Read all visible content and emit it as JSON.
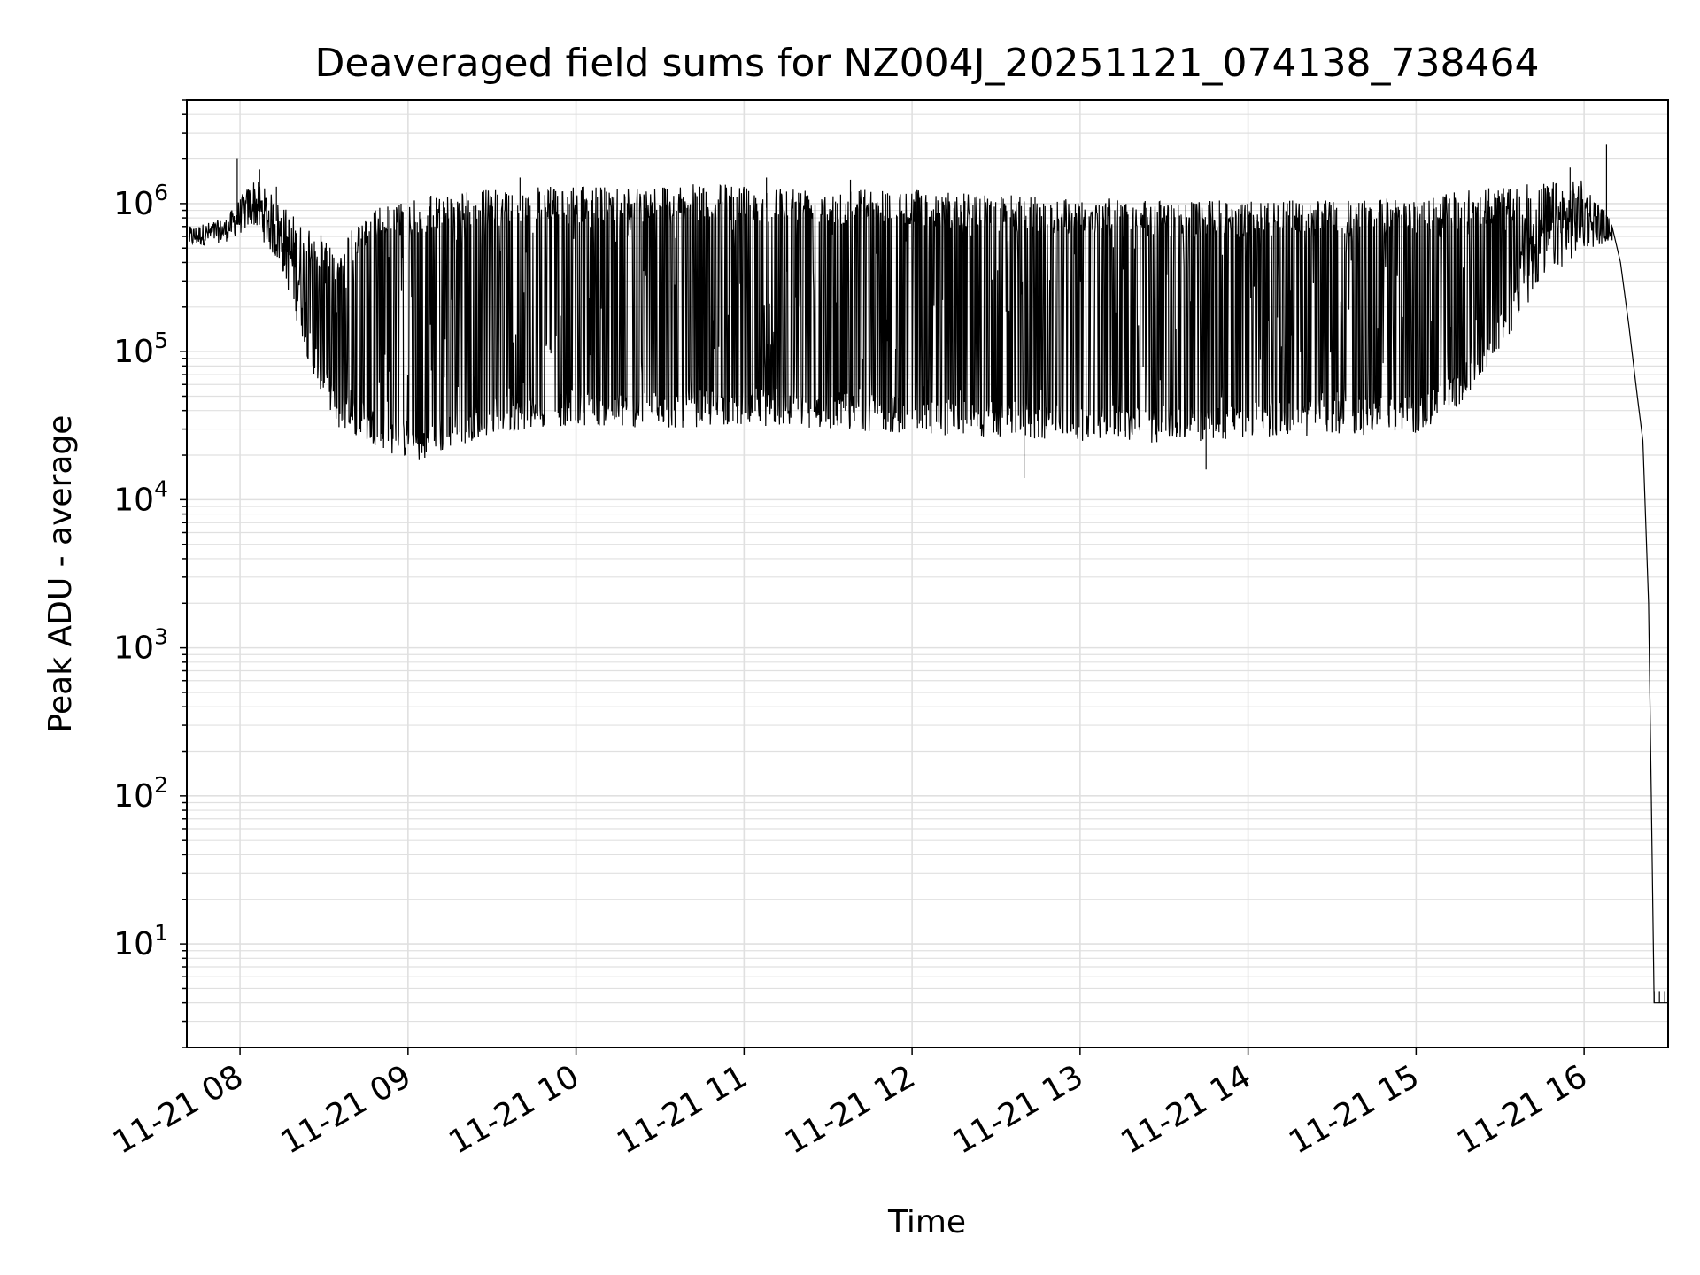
{
  "chart_data": {
    "type": "line",
    "title": "Deaveraged field sums for NZ004J_20251121_074138_738464",
    "xlabel": "Time",
    "ylabel": "Peak ADU - average",
    "yscale": "log",
    "ylim": [
      2,
      5000000
    ],
    "xlim": [
      "2025-11-21 07:41",
      "2025-11-21 16:30"
    ],
    "grid": true,
    "line_color": "#000000",
    "grid_color": "#e0e0e0",
    "x_ticks": [
      "11-21 08",
      "11-21 09",
      "11-21 10",
      "11-21 11",
      "11-21 12",
      "11-21 13",
      "11-21 14",
      "11-21 15",
      "11-21 16"
    ],
    "y_ticks": [
      {
        "base": "10",
        "exp": "1"
      },
      {
        "base": "10",
        "exp": "2"
      },
      {
        "base": "10",
        "exp": "3"
      },
      {
        "base": "10",
        "exp": "4"
      },
      {
        "base": "10",
        "exp": "5"
      },
      {
        "base": "10",
        "exp": "6"
      }
    ],
    "series": [
      {
        "lower_envelope": {
          "time": [
            "07:42",
            "07:55",
            "08:05",
            "08:15",
            "08:25",
            "08:35",
            "08:45",
            "08:55",
            "09:05",
            "09:15",
            "09:30",
            "09:45",
            "10:00",
            "10:30",
            "11:00",
            "11:30",
            "12:00",
            "12:30",
            "13:00",
            "13:30",
            "14:00",
            "14:30",
            "15:00",
            "15:15",
            "15:30",
            "15:45",
            "16:00",
            "16:10"
          ],
          "values": [
            500000,
            550000,
            700000,
            350000,
            80000,
            30000,
            25000,
            20000,
            18000,
            22000,
            28000,
            30000,
            32000,
            30000,
            32000,
            30000,
            28000,
            26000,
            25000,
            24000,
            26000,
            27000,
            28000,
            40000,
            100000,
            300000,
            480000,
            560000
          ]
        },
        "upper_envelope": {
          "time": [
            "07:42",
            "07:55",
            "08:05",
            "08:15",
            "08:25",
            "08:35",
            "08:45",
            "08:55",
            "09:05",
            "09:15",
            "09:30",
            "09:45",
            "10:00",
            "10:30",
            "11:00",
            "11:30",
            "12:00",
            "12:30",
            "13:00",
            "13:30",
            "14:00",
            "14:30",
            "15:00",
            "15:15",
            "15:30",
            "15:45",
            "16:00",
            "16:10"
          ],
          "values": [
            700000,
            800000,
            1500000,
            1000000,
            700000,
            500000,
            900000,
            1000000,
            1100000,
            1200000,
            1250000,
            1300000,
            1300000,
            1350000,
            1350000,
            1300000,
            1250000,
            1150000,
            1100000,
            1050000,
            1050000,
            1050000,
            1100000,
            1200000,
            1300000,
            1400000,
            1450000,
            750000
          ]
        },
        "spikes": [
          {
            "time": "07:59",
            "value": 2000000
          },
          {
            "time": "08:07",
            "value": 1700000
          },
          {
            "time": "08:13",
            "value": 1300000
          },
          {
            "time": "08:26",
            "value": 420000
          },
          {
            "time": "09:08",
            "value": 1100000
          },
          {
            "time": "09:40",
            "value": 1500000
          },
          {
            "time": "11:08",
            "value": 1500000
          },
          {
            "time": "11:38",
            "value": 1450000
          },
          {
            "time": "12:40",
            "value": 14000
          },
          {
            "time": "13:45",
            "value": 16000
          },
          {
            "time": "15:55",
            "value": 1750000
          },
          {
            "time": "16:08",
            "value": 2500000
          }
        ],
        "tail": {
          "time": [
            "16:10",
            "16:13",
            "16:16",
            "16:19",
            "16:21",
            "16:23",
            "16:24",
            "16:25",
            "16:26",
            "16:30"
          ],
          "values": [
            700000,
            400000,
            150000,
            50000,
            25000,
            2000,
            100,
            4,
            4,
            4
          ]
        }
      }
    ]
  }
}
